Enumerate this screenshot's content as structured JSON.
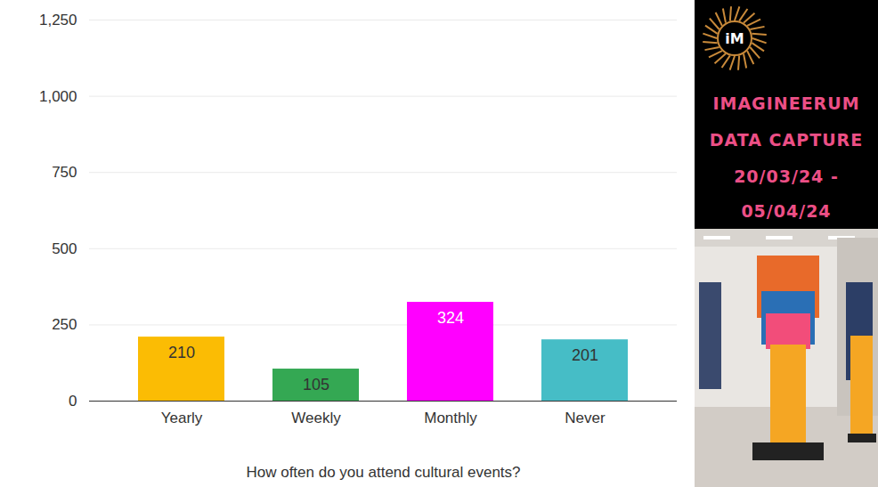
{
  "chart_data": {
    "type": "bar",
    "categories": [
      "Yearly",
      "Weekly",
      "Monthly",
      "Never"
    ],
    "values": [
      210,
      105,
      324,
      201
    ],
    "colors": [
      "#fbbc04",
      "#34a853",
      "#ff00ff",
      "#46bdc6"
    ],
    "x_label": "How often do you attend cultural events?",
    "ylim": [
      0,
      1250
    ],
    "yticks": [
      0,
      250,
      500,
      750,
      1000,
      1250
    ],
    "grid": true,
    "data_labels": true,
    "annotations": [
      "iM",
      "IMAGINEERUM",
      "DATA CAPTURE",
      "20/03/24 -",
      "05/04/24"
    ]
  }
}
